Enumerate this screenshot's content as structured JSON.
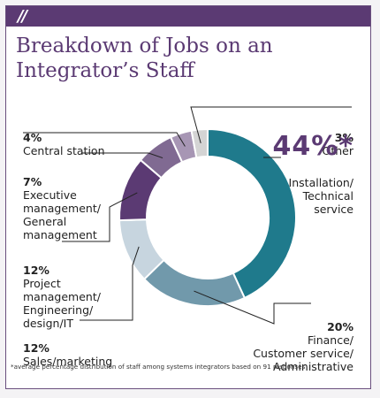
{
  "title_line1": "Breakdown of Jobs on an",
  "title_line2": "Integrator’s Staff",
  "header_mark": "//",
  "footnote": "*average percentage distribution of staff among systems integrators based on 91 responses",
  "colors": {
    "header": "#5b3a73",
    "installation": "#1f7a8c",
    "finance": "#7199ab",
    "sales": "#c7d5df",
    "project": "#5b3a73",
    "executive": "#806a92",
    "central": "#a796b4",
    "other": "#d4d4d4"
  },
  "chart_data": {
    "type": "donut",
    "title": "Breakdown of Jobs on an Integrator’s Staff",
    "slices": [
      {
        "key": "installation",
        "pct": "44%*",
        "label": "Installation/\nTechnical\nservice",
        "value": 44
      },
      {
        "key": "finance",
        "pct": "20%",
        "label": "Finance/\nCustomer service/\nAdministrative",
        "value": 20
      },
      {
        "key": "sales",
        "pct": "12%",
        "label": "Sales/marketing",
        "value": 12
      },
      {
        "key": "project",
        "pct": "12%",
        "label": "Project\nmanagement/\nEngineering/\ndesign/IT",
        "value": 12
      },
      {
        "key": "executive",
        "pct": "7%",
        "label": "Executive\nmanagement/\nGeneral\nmanagement",
        "value": 7
      },
      {
        "key": "central",
        "pct": "4%",
        "label": "Central station",
        "value": 4
      },
      {
        "key": "other",
        "pct": "3%",
        "label": "Other",
        "value": 3
      }
    ]
  }
}
